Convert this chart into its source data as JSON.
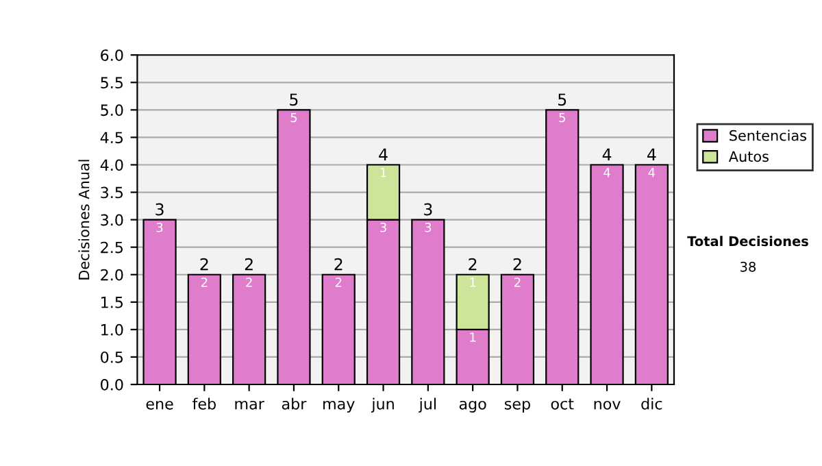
{
  "chart_data": {
    "type": "bar",
    "stacked": true,
    "ylabel": "Decisiones Anual",
    "categories": [
      "ene",
      "feb",
      "mar",
      "abr",
      "may",
      "jun",
      "jul",
      "ago",
      "sep",
      "oct",
      "nov",
      "dic"
    ],
    "series": [
      {
        "name": "Sentencias",
        "color": "#e07ccc",
        "values": [
          3,
          2,
          2,
          5,
          2,
          3,
          3,
          1,
          2,
          5,
          4,
          4
        ],
        "value_labels": [
          "3",
          "2",
          "2",
          "5",
          "2",
          "3",
          "3",
          "1",
          "2",
          "5",
          "4",
          "4"
        ]
      },
      {
        "name": "Autos",
        "color": "#cce59a",
        "values": [
          null,
          null,
          null,
          null,
          null,
          1,
          null,
          1,
          null,
          null,
          null,
          null
        ],
        "value_labels": [
          null,
          null,
          null,
          null,
          null,
          "1",
          null,
          "1",
          null,
          null,
          null,
          null
        ]
      }
    ],
    "totals": [
      "3",
      "2",
      "2",
      "5",
      "2",
      "4",
      "3",
      "2",
      "2",
      "5",
      "4",
      "4"
    ],
    "ylim": [
      0,
      6
    ],
    "yticks": [
      {
        "value": 0,
        "label": "0.0"
      },
      {
        "value": 0.5,
        "label": "0.5"
      },
      {
        "value": 1,
        "label": "1.0"
      },
      {
        "value": 1.5,
        "label": "1.5"
      },
      {
        "value": 2,
        "label": "2.0"
      },
      {
        "value": 2.5,
        "label": "2.5"
      },
      {
        "value": 3,
        "label": "3.0"
      },
      {
        "value": 3.5,
        "label": "3.5"
      },
      {
        "value": 4,
        "label": "4.0"
      },
      {
        "value": 4.5,
        "label": "4.5"
      },
      {
        "value": 5,
        "label": "5.0"
      },
      {
        "value": 5.5,
        "label": "5.5"
      },
      {
        "value": 6,
        "label": "6.0"
      }
    ],
    "grid": "y",
    "legend": "right",
    "annotations": [
      "Total Decisiones",
      "38"
    ]
  }
}
